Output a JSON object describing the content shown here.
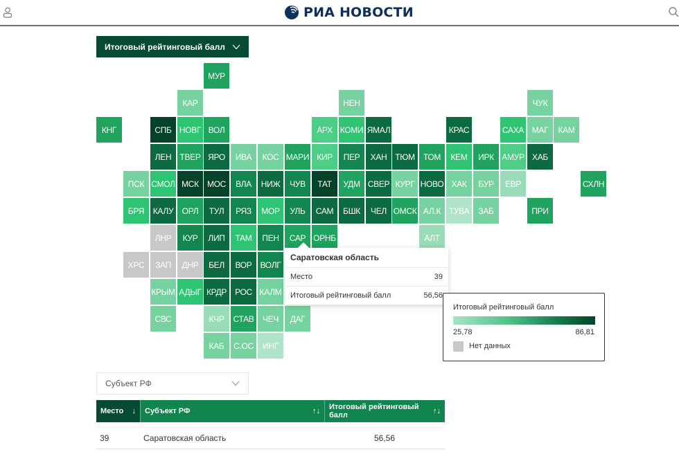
{
  "header": {
    "logo_text": "РИА НОВОСТИ",
    "user_icon": "user-icon",
    "search_icon": "search-icon"
  },
  "metric_select": {
    "label": "Итоговый рейтинговый балл",
    "icon": "chevron-down-icon"
  },
  "colors": {
    "d5": "#04432a",
    "d4": "#0b6a3f",
    "d3": "#13864f",
    "d2": "#1fa35f",
    "d1": "#2ec474",
    "l1": "#4dcd86",
    "l2": "#76d3a0",
    "l3": "#9adcb8",
    "l4": "#b0e4c8",
    "na": "#c8c8c8"
  },
  "tiles": [
    {
      "label": "МУР",
      "c": 4,
      "r": 0,
      "color": "d2"
    },
    {
      "label": "КАР",
      "c": 3,
      "r": 1,
      "color": "l2"
    },
    {
      "label": "НЕН",
      "c": 9,
      "r": 1,
      "color": "l2"
    },
    {
      "label": "ЧУК",
      "c": 16,
      "r": 1,
      "color": "l2"
    },
    {
      "label": "КНГ",
      "c": 0,
      "r": 2,
      "color": "d2"
    },
    {
      "label": "СПБ",
      "c": 2,
      "r": 2,
      "color": "d5"
    },
    {
      "label": "НОВГ",
      "c": 3,
      "r": 2,
      "color": "d1"
    },
    {
      "label": "ВОЛ",
      "c": 4,
      "r": 2,
      "color": "d2"
    },
    {
      "label": "АРХ",
      "c": 8,
      "r": 2,
      "color": "l1"
    },
    {
      "label": "КОМИ",
      "c": 9,
      "r": 2,
      "color": "d1"
    },
    {
      "label": "ЯМАЛ",
      "c": 10,
      "r": 2,
      "color": "d4"
    },
    {
      "label": "КРАС",
      "c": 13,
      "r": 2,
      "color": "d4"
    },
    {
      "label": "САХА",
      "c": 15,
      "r": 2,
      "color": "d1"
    },
    {
      "label": "МАГ",
      "c": 16,
      "r": 2,
      "color": "l2"
    },
    {
      "label": "КАМ",
      "c": 17,
      "r": 2,
      "color": "l2"
    },
    {
      "label": "ЛЕН",
      "c": 2,
      "r": 3,
      "color": "d4"
    },
    {
      "label": "ТВЕР",
      "c": 3,
      "r": 3,
      "color": "d2"
    },
    {
      "label": "ЯРО",
      "c": 4,
      "r": 3,
      "color": "d4"
    },
    {
      "label": "ИВА",
      "c": 5,
      "r": 3,
      "color": "l2"
    },
    {
      "label": "КОС",
      "c": 6,
      "r": 3,
      "color": "l2"
    },
    {
      "label": "МАРИ",
      "c": 7,
      "r": 3,
      "color": "d2"
    },
    {
      "label": "КИР",
      "c": 8,
      "r": 3,
      "color": "l1"
    },
    {
      "label": "ПЕР",
      "c": 9,
      "r": 3,
      "color": "d3"
    },
    {
      "label": "ХАН",
      "c": 10,
      "r": 3,
      "color": "d4"
    },
    {
      "label": "ТЮМ",
      "c": 11,
      "r": 3,
      "color": "d4"
    },
    {
      "label": "ТОМ",
      "c": 12,
      "r": 3,
      "color": "d2"
    },
    {
      "label": "КЕМ",
      "c": 13,
      "r": 3,
      "color": "d1"
    },
    {
      "label": "ИРК",
      "c": 14,
      "r": 3,
      "color": "d2"
    },
    {
      "label": "АМУР",
      "c": 15,
      "r": 3,
      "color": "l1"
    },
    {
      "label": "ХАБ",
      "c": 16,
      "r": 3,
      "color": "d4"
    },
    {
      "label": "ПСК",
      "c": 1,
      "r": 4,
      "color": "l2"
    },
    {
      "label": "СМОЛ",
      "c": 2,
      "r": 4,
      "color": "d1"
    },
    {
      "label": "МСК",
      "c": 3,
      "r": 4,
      "color": "d5"
    },
    {
      "label": "МОС",
      "c": 4,
      "r": 4,
      "color": "d5"
    },
    {
      "label": "ВЛА",
      "c": 5,
      "r": 4,
      "color": "d3"
    },
    {
      "label": "НИЖ",
      "c": 6,
      "r": 4,
      "color": "d4"
    },
    {
      "label": "ЧУВ",
      "c": 7,
      "r": 4,
      "color": "d3"
    },
    {
      "label": "ТАТ",
      "c": 8,
      "r": 4,
      "color": "d5"
    },
    {
      "label": "УДМ",
      "c": 9,
      "r": 4,
      "color": "d2"
    },
    {
      "label": "СВЕР",
      "c": 10,
      "r": 4,
      "color": "d4"
    },
    {
      "label": "КУРГ",
      "c": 11,
      "r": 4,
      "color": "l2"
    },
    {
      "label": "НОВО",
      "c": 12,
      "r": 4,
      "color": "d4"
    },
    {
      "label": "ХАК",
      "c": 13,
      "r": 4,
      "color": "l2"
    },
    {
      "label": "БУР",
      "c": 14,
      "r": 4,
      "color": "l2"
    },
    {
      "label": "ЕВР",
      "c": 15,
      "r": 4,
      "color": "l3"
    },
    {
      "label": "СХЛН",
      "c": 18,
      "r": 4,
      "color": "d2"
    },
    {
      "label": "БРЯ",
      "c": 1,
      "r": 5,
      "color": "d1"
    },
    {
      "label": "КАЛУ",
      "c": 2,
      "r": 5,
      "color": "d4"
    },
    {
      "label": "ОРЛ",
      "c": 3,
      "r": 5,
      "color": "d2"
    },
    {
      "label": "ТУЛ",
      "c": 4,
      "r": 5,
      "color": "d4"
    },
    {
      "label": "РЯЗ",
      "c": 5,
      "r": 5,
      "color": "d3"
    },
    {
      "label": "МОР",
      "c": 6,
      "r": 5,
      "color": "d1"
    },
    {
      "label": "УЛЬ",
      "c": 7,
      "r": 5,
      "color": "d3"
    },
    {
      "label": "САМ",
      "c": 8,
      "r": 5,
      "color": "d4"
    },
    {
      "label": "БШК",
      "c": 9,
      "r": 5,
      "color": "d4"
    },
    {
      "label": "ЧЕЛ",
      "c": 10,
      "r": 5,
      "color": "d4"
    },
    {
      "label": "ОМСК",
      "c": 11,
      "r": 5,
      "color": "d2"
    },
    {
      "label": "АЛ.К",
      "c": 12,
      "r": 5,
      "color": "l2"
    },
    {
      "label": "ТУВА",
      "c": 13,
      "r": 5,
      "color": "l4"
    },
    {
      "label": "ЗАБ",
      "c": 14,
      "r": 5,
      "color": "l2"
    },
    {
      "label": "ПРИ",
      "c": 16,
      "r": 5,
      "color": "d2"
    },
    {
      "label": "ЛНР",
      "c": 2,
      "r": 6,
      "color": "na"
    },
    {
      "label": "КУР",
      "c": 3,
      "r": 6,
      "color": "d3"
    },
    {
      "label": "ЛИП",
      "c": 4,
      "r": 6,
      "color": "d4"
    },
    {
      "label": "ТАМ",
      "c": 5,
      "r": 6,
      "color": "d1"
    },
    {
      "label": "ПЕН",
      "c": 6,
      "r": 6,
      "color": "d3"
    },
    {
      "label": "САР",
      "c": 7,
      "r": 6,
      "color": "d2"
    },
    {
      "label": "ОРНБ",
      "c": 8,
      "r": 6,
      "color": "d2"
    },
    {
      "label": "АЛТ",
      "c": 12,
      "r": 6,
      "color": "l3"
    },
    {
      "label": "ХРС",
      "c": 1,
      "r": 7,
      "color": "na"
    },
    {
      "label": "ЗАП",
      "c": 2,
      "r": 7,
      "color": "na"
    },
    {
      "label": "ДНР",
      "c": 3,
      "r": 7,
      "color": "na"
    },
    {
      "label": "БЕЛ",
      "c": 4,
      "r": 7,
      "color": "d4"
    },
    {
      "label": "ВОР",
      "c": 5,
      "r": 7,
      "color": "d4"
    },
    {
      "label": "ВОЛГ",
      "c": 6,
      "r": 7,
      "color": "d3"
    },
    {
      "label": "КРЫМ",
      "c": 2,
      "r": 8,
      "color": "l2"
    },
    {
      "label": "АДЫГ",
      "c": 3,
      "r": 8,
      "color": "d1"
    },
    {
      "label": "КРДР",
      "c": 4,
      "r": 8,
      "color": "d4"
    },
    {
      "label": "РОС",
      "c": 5,
      "r": 8,
      "color": "d4"
    },
    {
      "label": "КАЛМ",
      "c": 6,
      "r": 8,
      "color": "l2"
    },
    {
      "label": "СВС",
      "c": 2,
      "r": 9,
      "color": "l2"
    },
    {
      "label": "КЧР",
      "c": 4,
      "r": 9,
      "color": "l3"
    },
    {
      "label": "СТАВ",
      "c": 5,
      "r": 9,
      "color": "d2"
    },
    {
      "label": "ЧЕЧ",
      "c": 6,
      "r": 9,
      "color": "l2"
    },
    {
      "label": "ДАГ",
      "c": 7,
      "r": 9,
      "color": "l2"
    },
    {
      "label": "КАБ",
      "c": 4,
      "r": 10,
      "color": "l2"
    },
    {
      "label": "С.ОС",
      "c": 5,
      "r": 10,
      "color": "l2"
    },
    {
      "label": "ИНГ",
      "c": 6,
      "r": 10,
      "color": "l4"
    }
  ],
  "tooltip": {
    "title": "Саратовская область",
    "rows": [
      {
        "label": "Место",
        "value": "39"
      },
      {
        "label": "Итоговый рейтинговый балл",
        "value": "56,56"
      }
    ]
  },
  "legend": {
    "title": "Итоговый рейтинговый балл",
    "min": "25,78",
    "max": "86,81",
    "no_data": "Нет данных"
  },
  "subject_select": {
    "placeholder": "Субъект РФ",
    "icon": "chevron-down-icon"
  },
  "table": {
    "headers": [
      {
        "label": "Место",
        "sort": "↓"
      },
      {
        "label": "Субъект РФ",
        "sort": "↑↓"
      },
      {
        "label": "Итоговый рейтинговый балл",
        "sort": "↑↓"
      }
    ],
    "rows": [
      {
        "place": "39",
        "subject": "Саратовская область",
        "score": "56,56"
      }
    ]
  }
}
